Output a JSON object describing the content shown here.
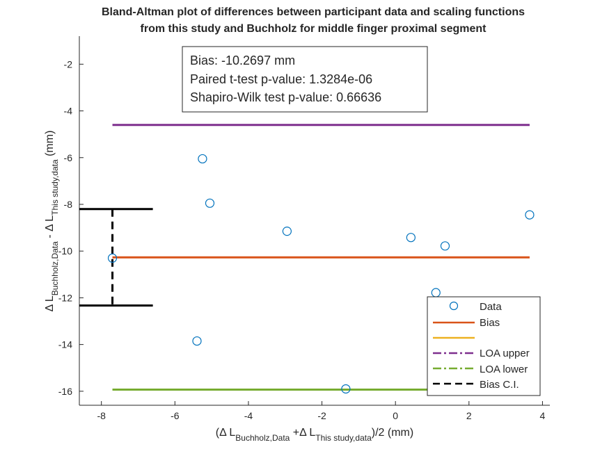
{
  "chart_data": {
    "type": "scatter",
    "title": [
      "Bland-Altman plot of differences between participant data and scaling functions",
      "from this study and Buchholz for middle finger proximal segment"
    ],
    "xlabel": {
      "prefix": "(Δ L",
      "sub1": "Buchholz,Data",
      "mid": " +Δ L",
      "sub2": "This study,data",
      "suffix": ")/2 (mm)"
    },
    "ylabel": {
      "prefix": "Δ L",
      "sub1": "Buchholz,Data",
      "mid": " - Δ L",
      "sub2": "This study,data",
      "suffix": " (mm)"
    },
    "xlim": [
      -8.6,
      4.2
    ],
    "ylim": [
      -16.6,
      -0.8
    ],
    "xticks": [
      -8,
      -6,
      -4,
      -2,
      0,
      2,
      4
    ],
    "yticks": [
      -2,
      -4,
      -6,
      -8,
      -10,
      -12,
      -14,
      -16
    ],
    "grid": false,
    "points": [
      {
        "x": -7.7,
        "y": -10.3
      },
      {
        "x": -5.25,
        "y": -6.05
      },
      {
        "x": -5.05,
        "y": -7.95
      },
      {
        "x": -5.4,
        "y": -13.85
      },
      {
        "x": -2.95,
        "y": -9.15
      },
      {
        "x": -1.35,
        "y": -15.9
      },
      {
        "x": 0.42,
        "y": -9.42
      },
      {
        "x": 1.35,
        "y": -9.78
      },
      {
        "x": 1.1,
        "y": -11.78
      },
      {
        "x": 3.65,
        "y": -8.45
      }
    ],
    "bias": -10.2697,
    "loa_upper": -4.6,
    "loa_lower": -15.93,
    "ci_upper": -8.2,
    "ci_lower": -12.33,
    "line_x_range": [
      -7.7,
      3.65
    ],
    "ci_x": -7.7,
    "ci_cap_range": [
      -8.6,
      -6.6
    ],
    "colors": {
      "data": "#0072BD",
      "bias": "#D95319",
      "empty": "#EDB120",
      "loa_upper": "#7E2F8E",
      "loa_lower": "#77AC30",
      "ci": "#000000",
      "axis": "#262626"
    },
    "annotation": [
      "Bias: -10.2697 mm",
      "Paired t-test p-value: 1.3284e-06",
      "Shapiro-Wilk test p-value: 0.66636"
    ],
    "legend": {
      "position": "bottom-right",
      "entries": [
        "Data",
        "Bias",
        "",
        "LOA upper",
        "LOA lower",
        "Bias C.I."
      ]
    }
  }
}
